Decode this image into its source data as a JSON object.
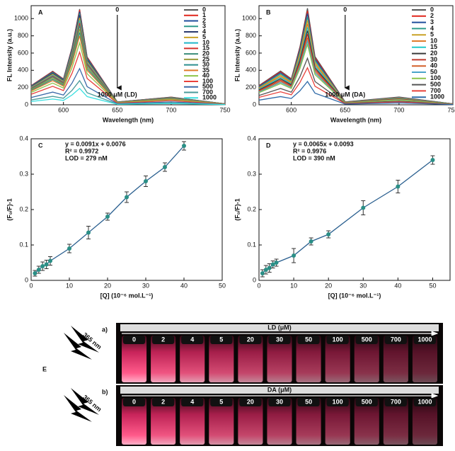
{
  "chart_data": [
    {
      "type": "line",
      "panel_label": "A",
      "xlabel": "Wavelength (nm)",
      "ylabel": "FL Intensity (a.u.)",
      "x": [
        570,
        590,
        600,
        608,
        615,
        622,
        650,
        700,
        750
      ],
      "xlim": [
        570,
        750
      ],
      "xticks": [
        600,
        650,
        700,
        750
      ],
      "ylim": [
        0,
        1150
      ],
      "yticks": [
        0,
        200,
        400,
        600,
        800,
        1000
      ],
      "annotations": [
        "0",
        "1000 μM (LD)"
      ],
      "series": [
        {
          "name": "0",
          "color": "#555555",
          "values": [
            222,
            389,
            300,
            666,
            1110,
            555,
            33,
            89,
            11
          ]
        },
        {
          "name": "1",
          "color": "#e0251b",
          "values": [
            220,
            385,
            297,
            660,
            1100,
            550,
            33,
            88,
            11
          ]
        },
        {
          "name": "2",
          "color": "#1f4e9c",
          "values": [
            216,
            378,
            292,
            648,
            1080,
            540,
            32,
            86,
            11
          ]
        },
        {
          "name": "3",
          "color": "#2e9c8c",
          "values": [
            212,
            371,
            286,
            636,
            1060,
            530,
            32,
            85,
            11
          ]
        },
        {
          "name": "4",
          "color": "#2a3a6e",
          "values": [
            208,
            364,
            281,
            624,
            1040,
            520,
            31,
            83,
            10
          ]
        },
        {
          "name": "5",
          "color": "#c9a227",
          "values": [
            202,
            354,
            273,
            606,
            1010,
            505,
            30,
            81,
            10
          ]
        },
        {
          "name": "10",
          "color": "#21b6c9",
          "values": [
            196,
            343,
            265,
            588,
            980,
            490,
            29,
            78,
            10
          ]
        },
        {
          "name": "15",
          "color": "#d4302a",
          "values": [
            190,
            333,
            257,
            570,
            950,
            475,
            29,
            76,
            10
          ]
        },
        {
          "name": "20",
          "color": "#3a8d7a",
          "values": [
            184,
            322,
            248,
            552,
            920,
            460,
            28,
            74,
            9
          ]
        },
        {
          "name": "25",
          "color": "#9a9a3a",
          "values": [
            176,
            308,
            238,
            528,
            880,
            440,
            26,
            70,
            9
          ]
        },
        {
          "name": "30",
          "color": "#2d8f8f",
          "values": [
            168,
            294,
            227,
            504,
            840,
            420,
            25,
            67,
            8
          ]
        },
        {
          "name": "35",
          "color": "#e07a2a",
          "values": [
            160,
            280,
            216,
            480,
            800,
            400,
            24,
            64,
            8
          ]
        },
        {
          "name": "40",
          "color": "#8ec44a",
          "values": [
            144,
            252,
            194,
            432,
            720,
            360,
            22,
            58,
            7
          ]
        },
        {
          "name": "100",
          "color": "#e8413b",
          "values": [
            122,
            214,
            165,
            366,
            610,
            305,
            18,
            49,
            6
          ]
        },
        {
          "name": "500",
          "color": "#3b6aa8",
          "values": [
            84,
            147,
            113,
            252,
            420,
            210,
            13,
            34,
            4
          ]
        },
        {
          "name": "700",
          "color": "#4a9a9a",
          "values": [
            56,
            98,
            76,
            168,
            280,
            140,
            8,
            22,
            3
          ]
        },
        {
          "name": "1000",
          "color": "#39e0e0",
          "values": [
            38,
            67,
            51,
            114,
            190,
            95,
            6,
            15,
            2
          ]
        }
      ]
    },
    {
      "type": "line",
      "panel_label": "B",
      "xlabel": "Wavelength (nm)",
      "ylabel": "FL Intensity (a.u.)",
      "x": [
        570,
        590,
        600,
        608,
        615,
        622,
        650,
        700,
        750
      ],
      "xlim": [
        570,
        750
      ],
      "xticks": [
        600,
        650,
        700,
        750
      ],
      "ylim": [
        0,
        1150
      ],
      "yticks": [
        0,
        200,
        400,
        600,
        800,
        1000
      ],
      "annotations": [
        "0",
        "1000 μM (DA)"
      ],
      "series": [
        {
          "name": "0",
          "color": "#555555",
          "values": [
            224,
            392,
            302,
            672,
            1120,
            560,
            34,
            90,
            11
          ]
        },
        {
          "name": "2",
          "color": "#e0251b",
          "values": [
            218,
            382,
            294,
            654,
            1090,
            545,
            33,
            87,
            11
          ]
        },
        {
          "name": "3",
          "color": "#1f4e9c",
          "values": [
            212,
            371,
            286,
            636,
            1060,
            530,
            32,
            85,
            11
          ]
        },
        {
          "name": "4",
          "color": "#2e9c8c",
          "values": [
            204,
            357,
            275,
            612,
            1020,
            510,
            31,
            82,
            10
          ]
        },
        {
          "name": "5",
          "color": "#c9a227",
          "values": [
            196,
            343,
            265,
            588,
            980,
            490,
            29,
            78,
            10
          ]
        },
        {
          "name": "10",
          "color": "#e07a2a",
          "values": [
            188,
            329,
            254,
            564,
            940,
            470,
            28,
            75,
            9
          ]
        },
        {
          "name": "15",
          "color": "#21c9c9",
          "values": [
            180,
            315,
            243,
            540,
            900,
            450,
            27,
            72,
            9
          ]
        },
        {
          "name": "20",
          "color": "#3a3a3a",
          "values": [
            172,
            301,
            232,
            516,
            860,
            430,
            26,
            69,
            9
          ]
        },
        {
          "name": "30",
          "color": "#c0392b",
          "values": [
            164,
            287,
            221,
            492,
            820,
            410,
            25,
            66,
            8
          ]
        },
        {
          "name": "40",
          "color": "#d4602a",
          "values": [
            156,
            273,
            211,
            468,
            780,
            390,
            23,
            62,
            8
          ]
        },
        {
          "name": "50",
          "color": "#4aa3c9",
          "values": [
            148,
            259,
            200,
            444,
            740,
            370,
            22,
            59,
            7
          ]
        },
        {
          "name": "100",
          "color": "#8ec44a",
          "values": [
            140,
            245,
            189,
            420,
            700,
            350,
            21,
            56,
            7
          ]
        },
        {
          "name": "500",
          "color": "#555555",
          "values": [
            108,
            189,
            146,
            324,
            540,
            270,
            16,
            43,
            5
          ]
        },
        {
          "name": "700",
          "color": "#e8413b",
          "values": [
            86,
            151,
            116,
            258,
            430,
            215,
            13,
            34,
            4
          ]
        },
        {
          "name": "1000",
          "color": "#2f6aa8",
          "values": [
            54,
            95,
            73,
            162,
            270,
            135,
            8,
            22,
            3
          ]
        }
      ]
    },
    {
      "type": "scatter",
      "panel_label": "C",
      "xlabel": "[Q] (10⁻⁶ mol.L⁻¹)",
      "ylabel": "(F₀/F)-1",
      "x": [
        1,
        2,
        3,
        4,
        5,
        10,
        15,
        20,
        25,
        30,
        35,
        40
      ],
      "values": [
        0.02,
        0.03,
        0.04,
        0.045,
        0.055,
        0.09,
        0.135,
        0.18,
        0.235,
        0.28,
        0.32,
        0.38
      ],
      "errors": [
        0.008,
        0.01,
        0.012,
        0.012,
        0.012,
        0.012,
        0.018,
        0.01,
        0.015,
        0.015,
        0.012,
        0.012
      ],
      "color": "#2a8f86",
      "xlim": [
        0,
        50
      ],
      "xticks": [
        0,
        10,
        20,
        30,
        40,
        50
      ],
      "ylim": [
        0,
        0.4
      ],
      "yticks": [
        0.0,
        0.1,
        0.2,
        0.3,
        0.4
      ],
      "annotations": [
        "y = 0.0091x + 0.0076",
        "R² = 0.9972",
        "LOD = 279 nM"
      ]
    },
    {
      "type": "scatter",
      "panel_label": "D",
      "xlabel": "[Q] (10⁻⁶ mol.L⁻¹)",
      "ylabel": "(F₀/F)-1",
      "x": [
        1,
        2,
        3,
        4,
        5,
        10,
        15,
        20,
        30,
        40,
        50
      ],
      "values": [
        0.02,
        0.03,
        0.035,
        0.045,
        0.05,
        0.07,
        0.11,
        0.13,
        0.205,
        0.265,
        0.34
      ],
      "errors": [
        0.01,
        0.012,
        0.012,
        0.01,
        0.01,
        0.02,
        0.01,
        0.01,
        0.02,
        0.018,
        0.012
      ],
      "color": "#2a8f86",
      "xlim": [
        0,
        55
      ],
      "xticks": [
        0,
        10,
        20,
        30,
        40,
        50
      ],
      "ylim": [
        0,
        0.4
      ],
      "yticks": [
        0.0,
        0.1,
        0.2,
        0.3,
        0.4
      ],
      "annotations": [
        "y = 0.0065x + 0.0093",
        "R² = 0.9976",
        "LOD = 390 nM"
      ]
    }
  ],
  "photo": {
    "panel_label": "E",
    "uv": "365 nm",
    "rows": [
      {
        "label": "a)",
        "title": "LD (μM)"
      },
      {
        "label": "b)",
        "title": "DA (μM)"
      }
    ],
    "concentrations": [
      "0",
      "2",
      "4",
      "5",
      "20",
      "30",
      "50",
      "100",
      "500",
      "700",
      "1000"
    ]
  }
}
